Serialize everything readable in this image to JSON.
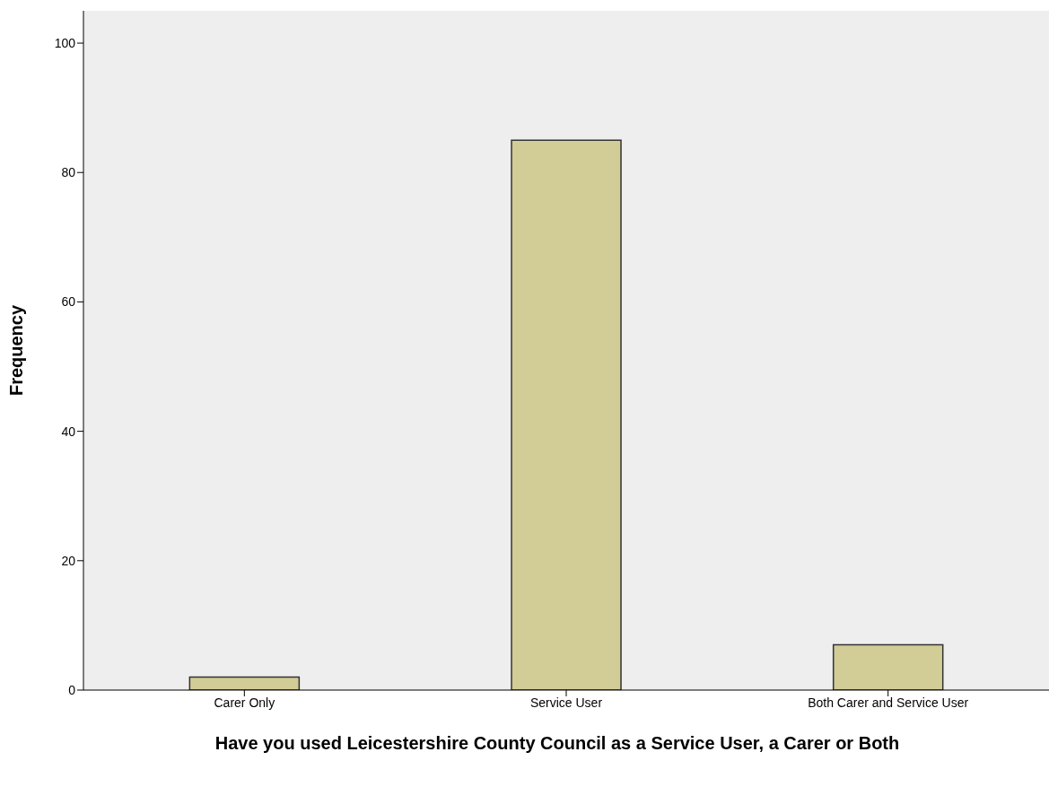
{
  "chart_data": {
    "type": "bar",
    "xlabel": "Have you used Leicestershire County Council as a Service User, a Carer or Both",
    "ylabel": "Frequency",
    "categories": [
      "Carer Only",
      "Service User",
      "Both Carer and Service User"
    ],
    "values": [
      2,
      85,
      7
    ],
    "color": "#d2cc96",
    "ylim": [
      0,
      105
    ],
    "yticks": [
      0,
      20,
      40,
      60,
      80,
      100
    ],
    "grid": false
  }
}
